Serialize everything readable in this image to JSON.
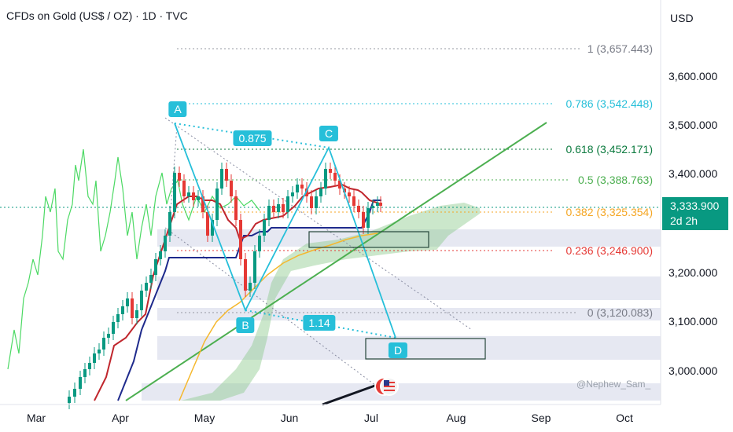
{
  "header": {
    "title": "CFDs on Gold (US$ / OZ) · 1D · TVC",
    "currency": "USD"
  },
  "price_tag": {
    "price": "3,333.900",
    "countdown": "2d 2h"
  },
  "x_axis": [
    "Mar",
    "Apr",
    "May",
    "Jun",
    "Jul",
    "Aug",
    "Sep",
    "Oct"
  ],
  "y_axis": [
    "3,600.000",
    "3,500.000",
    "3,400.000",
    "3,200.000",
    "3,100.000",
    "3,000.000"
  ],
  "fib_levels": [
    {
      "text": "1 (3,657.443)",
      "color": "#787b86"
    },
    {
      "text": "0.786 (3,542.448)",
      "color": "#26bfd9"
    },
    {
      "text": "0.618 (3,452.171)",
      "color": "#0b7a3e"
    },
    {
      "text": "0.5 (3,388.763)",
      "color": "#4caf50"
    },
    {
      "text": "0.382 (3,325.354)",
      "color": "#f5a623"
    },
    {
      "text": "0.236 (3,246.900)",
      "color": "#e53935"
    },
    {
      "text": "0 (3,120.083)",
      "color": "#787b86"
    }
  ],
  "pattern_points": [
    "A",
    "B",
    "C",
    "D"
  ],
  "ratios": [
    "0.875",
    "1.14"
  ],
  "watermark": "@Nephew_Sam_",
  "colors": {
    "up": "#089981",
    "down": "#e53935",
    "pattern": "#26bfd9",
    "trendline": "#4caf50",
    "kijun": "#1e2a8c",
    "tenkan": "#c0262d",
    "ma": "#f5b82e",
    "cloud": "#8bc98b"
  }
}
